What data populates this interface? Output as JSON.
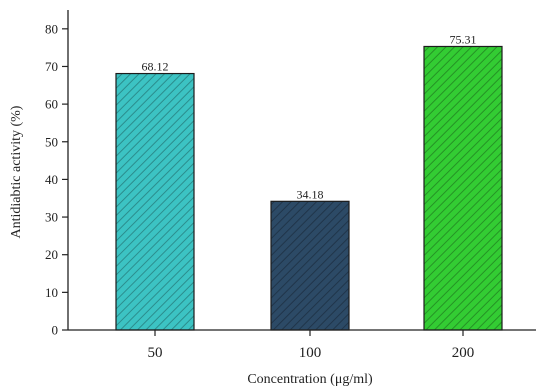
{
  "chart_data": {
    "type": "bar",
    "categories": [
      "50",
      "100",
      "200"
    ],
    "values": [
      68.12,
      34.18,
      75.31
    ],
    "value_labels": [
      "68.12",
      "34.18",
      "75.31"
    ],
    "title": "",
    "xlabel": "Concentration (μg/ml)",
    "ylabel": "Antidiabtic activity (%)",
    "ylim": [
      0,
      85
    ],
    "yticks": [
      0,
      10,
      20,
      30,
      40,
      50,
      60,
      70,
      80
    ],
    "grid": false,
    "legend": "none",
    "colors": [
      "#3cc3c3",
      "#2c4a66",
      "#33cc33"
    ],
    "hatch": "diagonal"
  }
}
